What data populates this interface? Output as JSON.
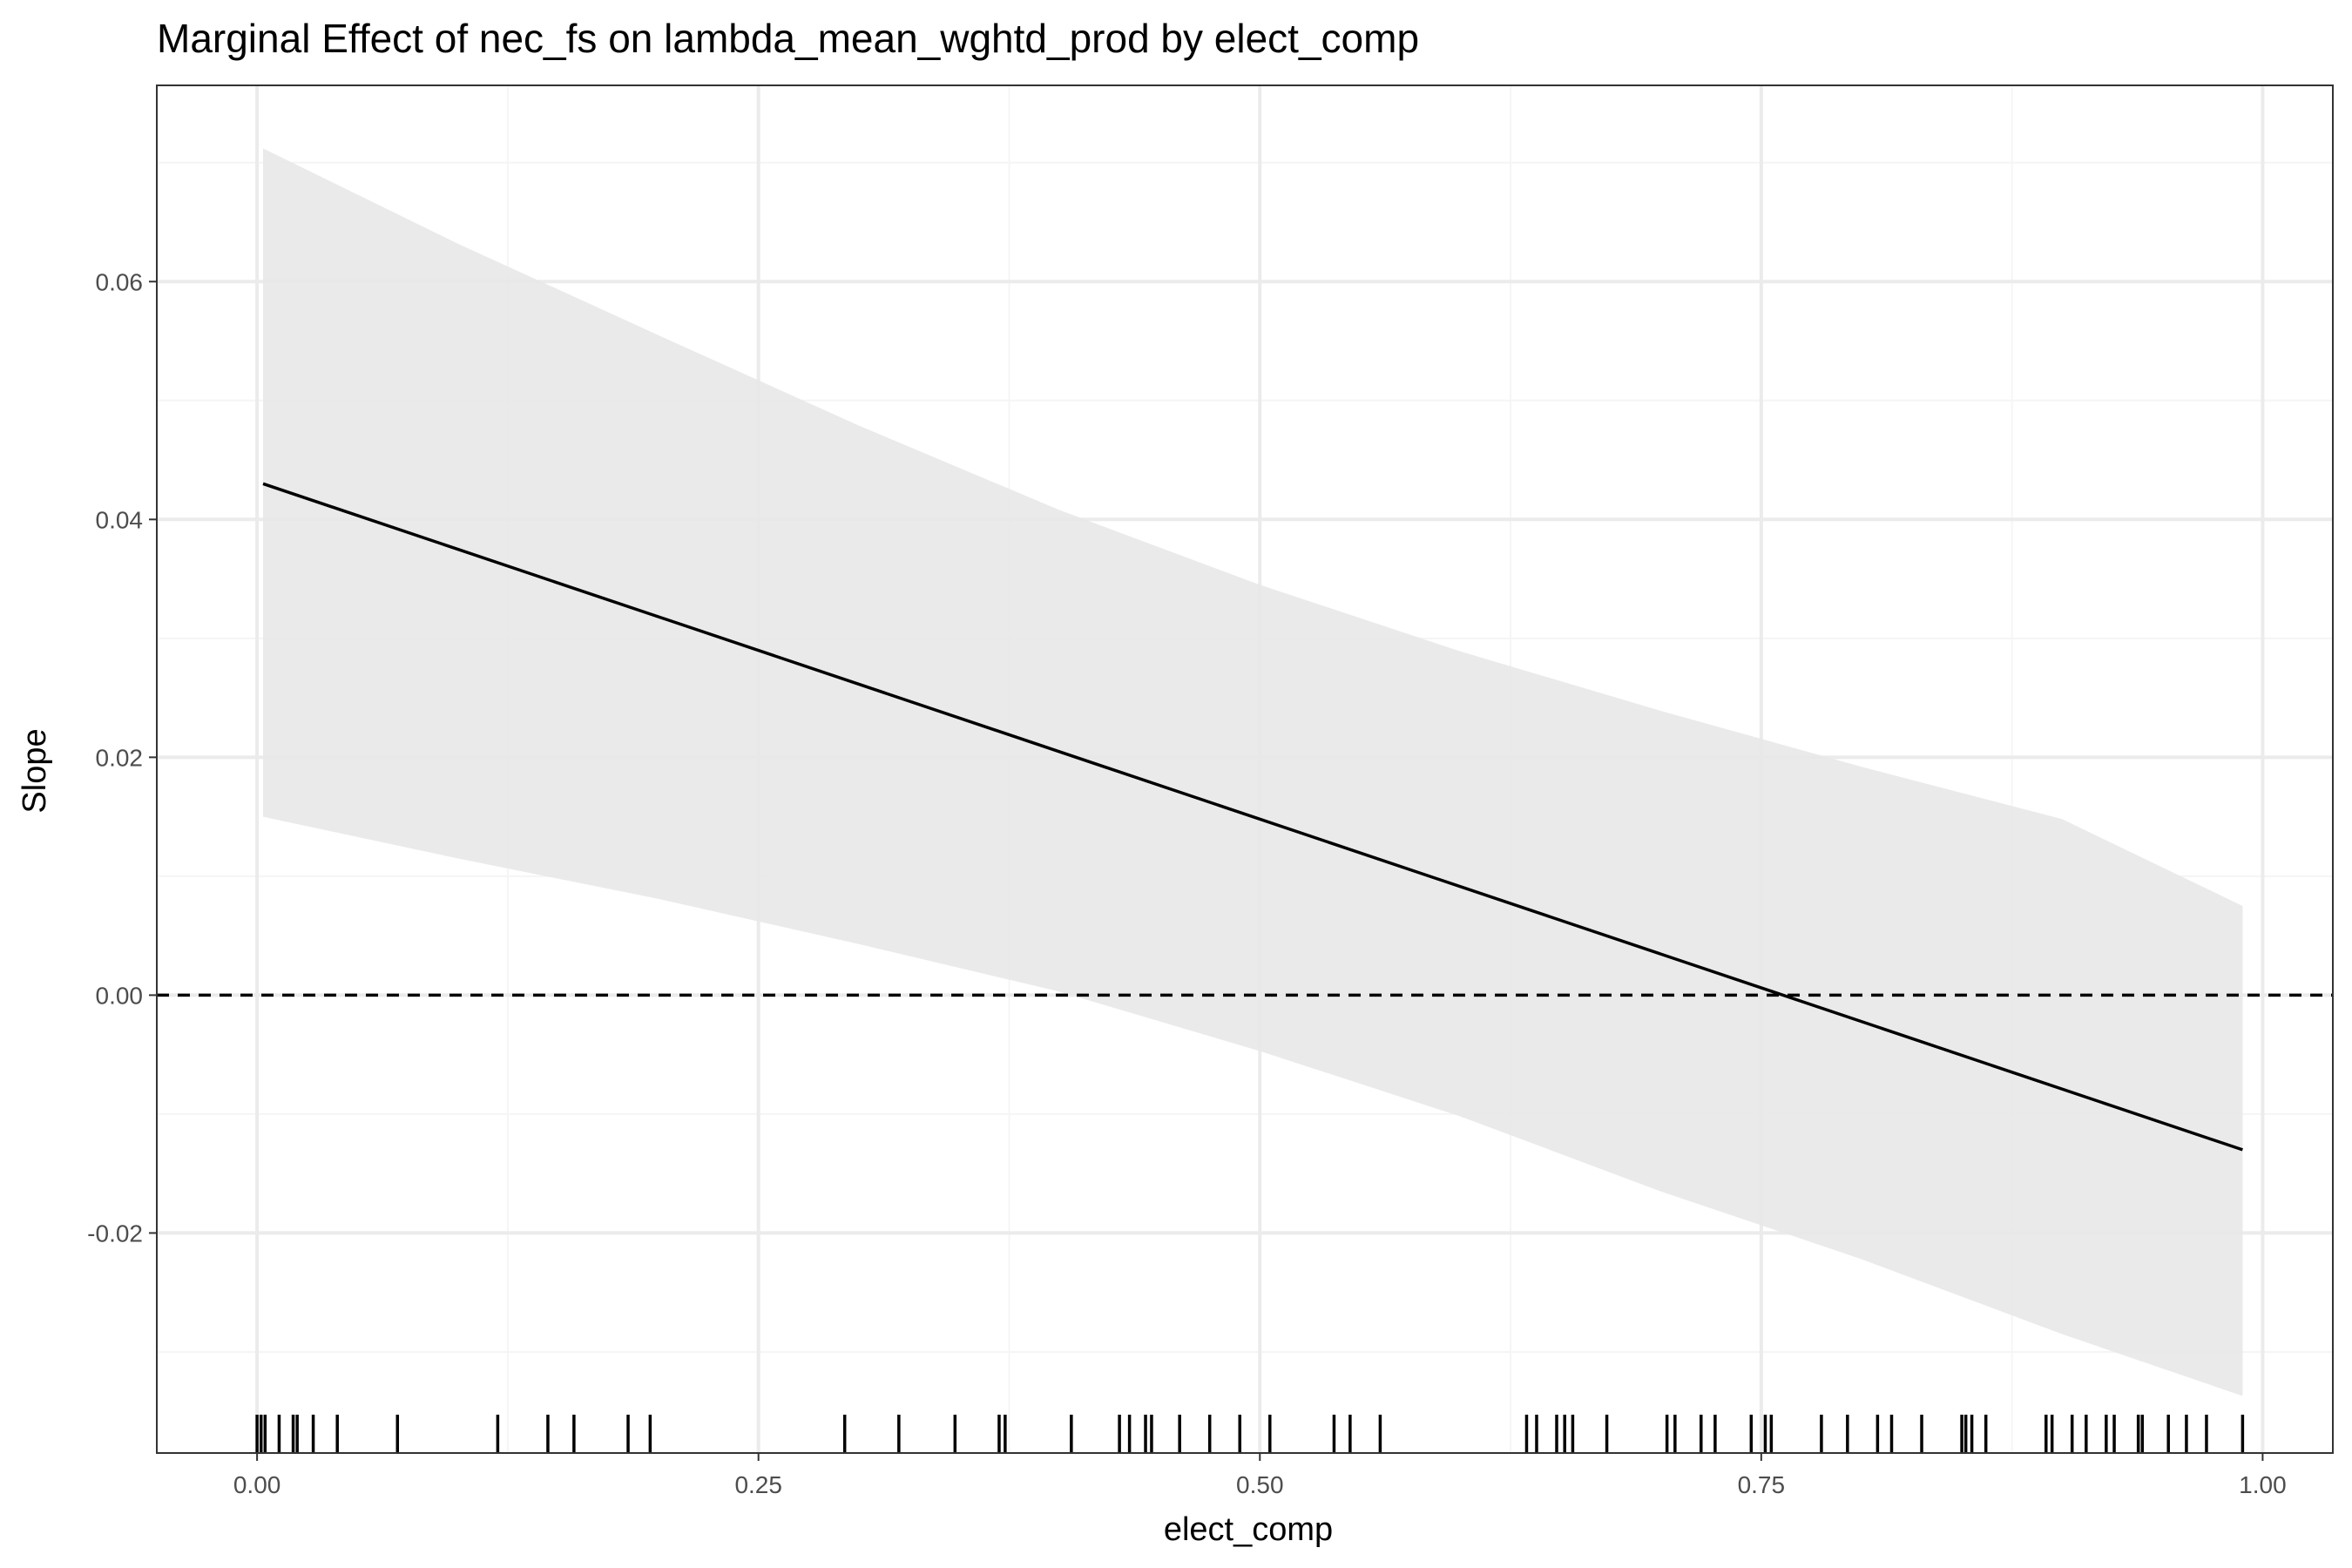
{
  "chart_data": {
    "type": "line",
    "title": "Marginal Effect of nec_fs on lambda_mean_wghtd_prod by elect_comp",
    "xlabel": "elect_comp",
    "ylabel": "Slope",
    "xlim": [
      -0.05,
      1.035
    ],
    "ylim": [
      -0.0385,
      0.0765
    ],
    "x_ticks": [
      0.0,
      0.25,
      0.5,
      0.75,
      1.0
    ],
    "x_tick_labels": [
      "0.00",
      "0.25",
      "0.50",
      "0.75",
      "1.00"
    ],
    "y_ticks": [
      -0.02,
      0.0,
      0.02,
      0.04,
      0.06
    ],
    "y_tick_labels": [
      "-0.02",
      "0.00",
      "0.02",
      "0.04",
      "0.06"
    ],
    "grid": true,
    "series": [
      {
        "x": [
          0.003,
          0.99
        ],
        "y": [
          0.043,
          -0.013
        ],
        "color": "#000000"
      }
    ],
    "confidence_band": {
      "x": [
        0.003,
        0.1,
        0.2,
        0.3,
        0.4,
        0.5,
        0.6,
        0.7,
        0.8,
        0.9,
        0.99
      ],
      "upper": [
        0.0712,
        0.0632,
        0.0555,
        0.0479,
        0.0408,
        0.0345,
        0.0289,
        0.0239,
        0.0192,
        0.0148,
        0.0075
      ],
      "lower": [
        0.015,
        0.0115,
        0.0081,
        0.0043,
        0.0003,
        -0.0047,
        -0.0102,
        -0.0165,
        -0.0222,
        -0.0285,
        -0.0337
      ],
      "color": "#e8e8e8"
    },
    "reference_line": {
      "y": 0.0,
      "style": "dashed",
      "color": "#000000"
    },
    "rug": [
      0.0,
      0.002,
      0.004,
      0.011,
      0.018,
      0.02,
      0.028,
      0.04,
      0.07,
      0.12,
      0.145,
      0.158,
      0.185,
      0.196,
      0.293,
      0.32,
      0.348,
      0.37,
      0.373,
      0.406,
      0.43,
      0.435,
      0.443,
      0.446,
      0.46,
      0.475,
      0.49,
      0.505,
      0.537,
      0.545,
      0.56,
      0.633,
      0.638,
      0.648,
      0.652,
      0.656,
      0.673,
      0.703,
      0.707,
      0.72,
      0.727,
      0.745,
      0.752,
      0.755,
      0.78,
      0.793,
      0.808,
      0.815,
      0.83,
      0.85,
      0.852,
      0.855,
      0.862,
      0.892,
      0.895,
      0.905,
      0.912,
      0.922,
      0.926,
      0.938,
      0.94,
      0.953,
      0.962,
      0.972,
      0.99
    ],
    "colors": {
      "background": "#ffffff",
      "panel_border": "#333333",
      "grid_major": "#ebebeb",
      "grid_minor": "#f5f5f5",
      "band": "#e8e8e8",
      "line": "#000000"
    }
  }
}
